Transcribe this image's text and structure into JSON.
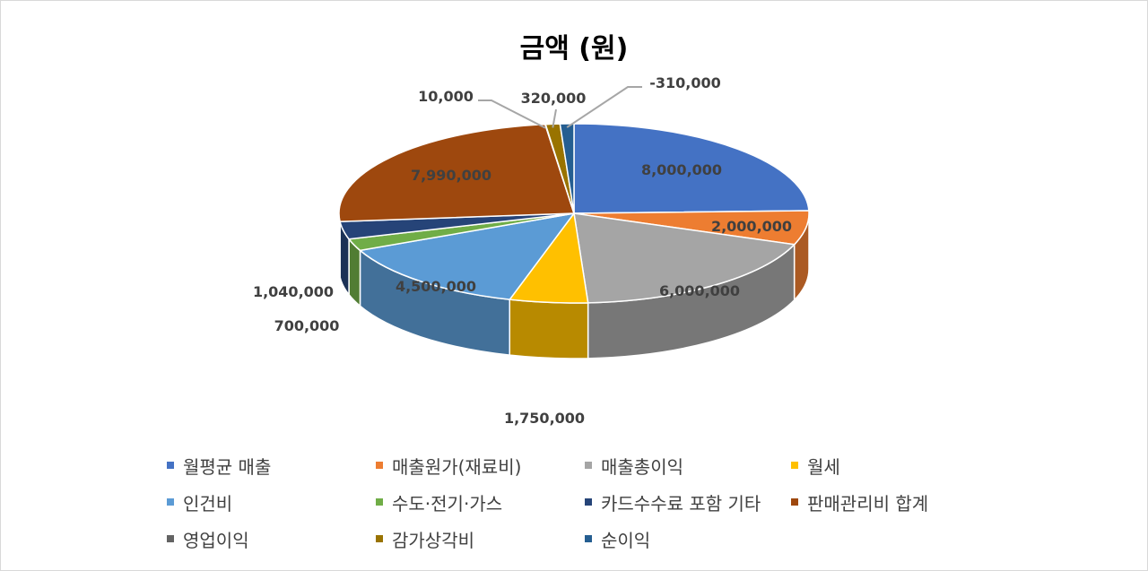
{
  "chart_data": {
    "type": "pie",
    "title": "금액 (원)",
    "three_d": true,
    "legend_position": "bottom",
    "slices": [
      {
        "name": "월평균 매출",
        "value": 8000000,
        "label": "8,000,000",
        "color": "#4472C4"
      },
      {
        "name": "매출원가(재료비)",
        "value": 2000000,
        "label": "2,000,000",
        "color": "#ED7D31"
      },
      {
        "name": "매출총이익",
        "value": 6000000,
        "label": "6,000,000",
        "color": "#A5A5A5"
      },
      {
        "name": "월세",
        "value": 1750000,
        "label": "1,750,000",
        "color": "#FFC000"
      },
      {
        "name": "인건비",
        "value": 4500000,
        "label": "4,500,000",
        "color": "#5B9BD5"
      },
      {
        "name": "수도·전기·가스",
        "value": 700000,
        "label": "700,000",
        "color": "#70AD47"
      },
      {
        "name": "카드수수료 포함 기타",
        "value": 1040000,
        "label": "1,040,000",
        "color": "#264478"
      },
      {
        "name": "판매관리비 합계",
        "value": 7990000,
        "label": "7,990,000",
        "color": "#9E480E"
      },
      {
        "name": "영업이익",
        "value": 10000,
        "label": "10,000",
        "color": "#636363"
      },
      {
        "name": "감가상각비",
        "value": 320000,
        "label": "320,000",
        "color": "#997300"
      },
      {
        "name": "순이익",
        "value": -310000,
        "label": "-310,000",
        "color": "#255E91"
      }
    ]
  }
}
